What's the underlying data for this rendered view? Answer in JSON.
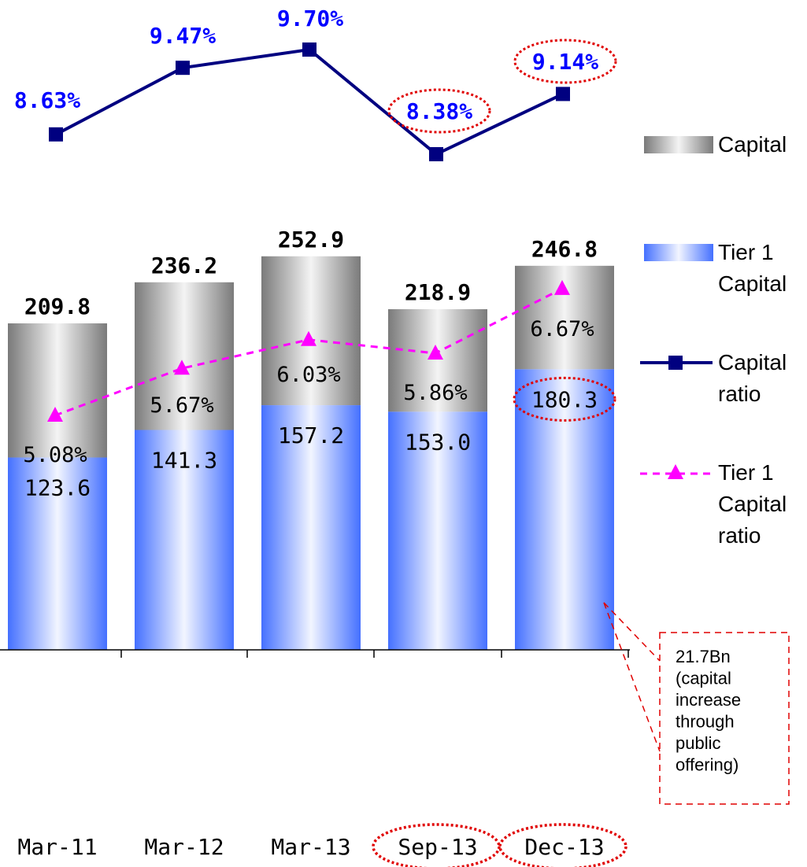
{
  "chart_data": {
    "type": "bar",
    "categories": [
      "Mar-11",
      "Mar-12",
      "Mar-13",
      "Sep-13",
      "Dec-13"
    ],
    "highlighted_categories": [
      "Sep-13",
      "Dec-13"
    ],
    "bar_series": [
      {
        "name": "Capital",
        "totals": [
          209.8,
          236.2,
          252.9,
          218.9,
          246.8
        ],
        "total_labels": [
          "209.8",
          "236.2",
          "252.9",
          "218.9",
          "246.8"
        ]
      },
      {
        "name": "Tier 1 Capital",
        "values": [
          123.6,
          141.3,
          157.2,
          153.0,
          180.3
        ],
        "labels": [
          "123.6",
          "141.3",
          "157.2",
          "153.0",
          "180.3"
        ],
        "highlighted_index": 4
      }
    ],
    "line_series": [
      {
        "name": "Capital ratio",
        "values": [
          8.63,
          9.47,
          9.7,
          8.38,
          9.14
        ],
        "labels": [
          "8.63%",
          "9.47%",
          "9.70%",
          "8.38%",
          "9.14%"
        ],
        "highlighted_indices": [
          3,
          4
        ],
        "color": "#000080",
        "label_color": "#0000ff"
      },
      {
        "name": "Tier 1 Capital ratio",
        "values": [
          5.08,
          5.67,
          6.03,
          5.86,
          6.67
        ],
        "labels": [
          "5.08%",
          "5.67%",
          "6.03%",
          "5.86%",
          "6.67%"
        ],
        "color": "#ff00ff"
      }
    ],
    "legend": {
      "position": "right",
      "items": [
        {
          "lines": [
            "Capital"
          ],
          "kind": "gray-bar"
        },
        {
          "lines": [
            "Tier 1",
            "Capital"
          ],
          "kind": "blue-bar"
        },
        {
          "lines": [
            "Capital",
            "ratio"
          ],
          "kind": "navy-line"
        },
        {
          "lines": [
            "Tier 1",
            "Capital",
            "ratio"
          ],
          "kind": "magenta-dash"
        }
      ]
    },
    "annotation": {
      "lines": [
        "21.7Bn",
        "(capital",
        "increase",
        "through",
        "public",
        "offering)"
      ]
    },
    "colors": {
      "capital_bar": "#8c8c8c",
      "tier1_bar": "#4d7cff",
      "highlight": "#e00000"
    }
  }
}
